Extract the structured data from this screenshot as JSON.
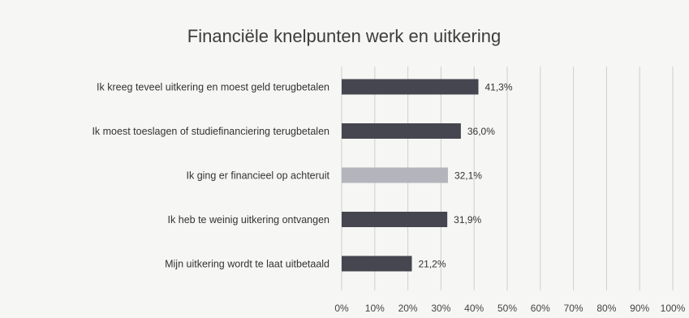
{
  "chart_data": {
    "type": "bar",
    "orientation": "horizontal",
    "title": "Financiële knelpunten werk en uitkering",
    "xlabel": "",
    "ylabel": "",
    "xlim": [
      0,
      100
    ],
    "grid": true,
    "legend": "none",
    "categories": [
      "Ik kreeg teveel uitkering en moest geld terugbetalen",
      "Ik moest toeslagen of studiefinanciering terugbetalen",
      "Ik ging er financieel op achteruit",
      "Ik heb te weinig uitkering ontvangen",
      "Mijn uitkering wordt te laat uitbetaald"
    ],
    "values": [
      41.3,
      36.0,
      32.1,
      31.9,
      21.2
    ],
    "value_labels": [
      "41,3%",
      "36,0%",
      "32,1%",
      "31,9%",
      "21,2%"
    ],
    "tick_labels": [
      "0%",
      "10%",
      "20%",
      "30%",
      "40%",
      "50%",
      "60%",
      "70%",
      "80%",
      "90%",
      "100%"
    ],
    "ticks": [
      0,
      10,
      20,
      30,
      40,
      50,
      60,
      70,
      80,
      90,
      100
    ],
    "colors": {
      "bar": "#45464f",
      "bar_highlight": "#b4b4bc",
      "grid": "#cfcfcf",
      "text": "#333333"
    },
    "highlight_index": 2
  }
}
